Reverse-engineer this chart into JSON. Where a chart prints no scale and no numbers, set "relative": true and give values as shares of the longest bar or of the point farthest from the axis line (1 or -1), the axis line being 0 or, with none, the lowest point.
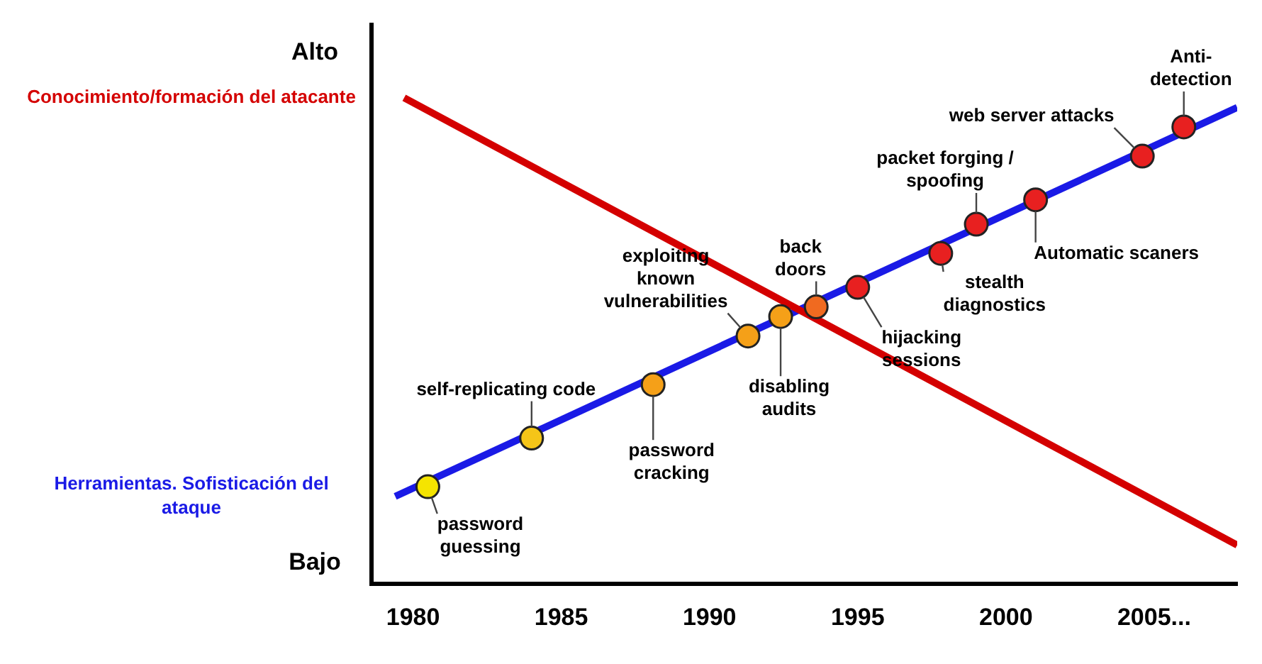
{
  "chart_data": {
    "type": "line",
    "relative": true,
    "grid": false,
    "legend": false,
    "xlim": [
      1978.6,
      2007.8
    ],
    "xticks": [
      1980,
      1985,
      1990,
      1995,
      2000,
      {
        "value": 2005,
        "label": "2005..."
      }
    ],
    "series": [
      {
        "name": "Conocimiento/formación del atacante",
        "type": "line",
        "color": "#d40000",
        "x": [
          1979.7,
          2007.8
        ],
        "values": [
          1,
          0.08
        ]
      },
      {
        "name": "Herramientas. Sofisticación del ataque",
        "type": "line",
        "color": "#1a1ae6",
        "x": [
          1979.4,
          2007.8
        ],
        "values": [
          0.18,
          0.98
        ]
      },
      {
        "type": "scatter",
        "marker": "circle",
        "colors": [
          "#f5e400",
          "#f5c518",
          "#f5a018",
          "#f5a018",
          "#f5a018",
          "#f06a20",
          "#e82020",
          "#e82020",
          "#e82020",
          "#e82020",
          "#e82020",
          "#e82020"
        ],
        "x": [
          1980.5,
          1984.0,
          1988.1,
          1991.3,
          1992.4,
          1993.6,
          1995.0,
          1997.8,
          1999.0,
          2001.0,
          2004.6,
          2006.0
        ],
        "values": [
          0.2,
          0.3,
          0.41,
          0.51,
          0.55,
          0.57,
          0.61,
          0.68,
          0.74,
          0.79,
          0.88,
          0.94
        ]
      }
    ],
    "annotations": [
      "Alto",
      "Bajo",
      {
        "text": "password guessing",
        "x": 1980.5,
        "y": 0.2
      },
      {
        "text": "self-replicating code",
        "x": 1984.0,
        "y": 0.3
      },
      {
        "text": "password cracking",
        "x": 1988.1,
        "y": 0.41
      },
      {
        "text": "exploiting known vulnerabilities",
        "x": 1991.3,
        "y": 0.51
      },
      {
        "text": "disabling audits",
        "x": 1992.4,
        "y": 0.55
      },
      {
        "text": "back doors",
        "x": 1993.6,
        "y": 0.57
      },
      {
        "text": "hijacking sessions",
        "x": 1995.0,
        "y": 0.61
      },
      {
        "text": "stealth diagnostics",
        "x": 1997.8,
        "y": 0.68
      },
      {
        "text": "packet forging / spoofing",
        "x": 1999.0,
        "y": 0.74
      },
      {
        "text": "Automatic scaners",
        "x": 2001.0,
        "y": 0.79
      },
      {
        "text": "web server attacks",
        "x": 2004.6,
        "y": 0.88
      },
      {
        "text": "Anti-detection",
        "x": 2006.0,
        "y": 0.94
      }
    ]
  }
}
